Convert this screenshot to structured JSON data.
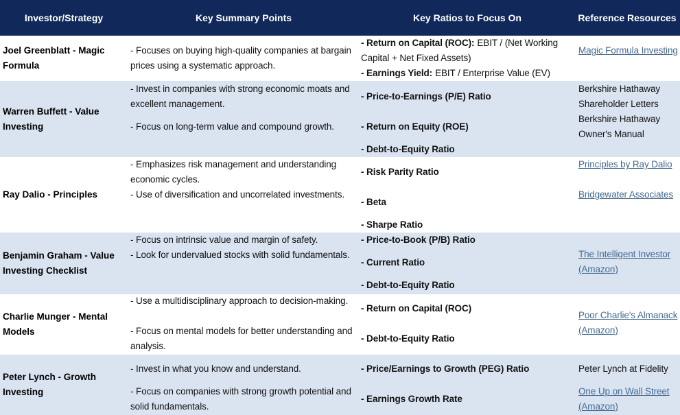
{
  "table": {
    "headers": [
      "Investor/Strategy",
      "Key Summary Points",
      "Key Ratios to Focus On",
      "Reference Resources"
    ],
    "rows": [
      {
        "investor": "Joel Greenblatt - Magic Formula",
        "points": [
          "- Focuses on buying high-quality companies at bargain prices using a systematic approach."
        ],
        "ratios": [
          {
            "name": "- Return on Capital (ROC):",
            "detail": "EBIT / (Net Working Capital + Net Fixed Assets)"
          },
          {
            "name": "- Earnings Yield:",
            "detail": "EBIT / Enterprise Value (EV)"
          }
        ],
        "resources": [
          {
            "text": "Magic Formula Investing",
            "link": true
          }
        ]
      },
      {
        "investor": "Warren Buffett - Value Investing",
        "points": [
          "- Invest in companies with strong economic moats and excellent management.",
          "- Focus on long-term value and compound growth."
        ],
        "ratios": [
          {
            "name": "- Price-to-Earnings (P/E) Ratio"
          },
          {
            "name": "- Return on Equity (ROE)"
          },
          {
            "name": "- Debt-to-Equity Ratio"
          }
        ],
        "resources": [
          {
            "text": "Berkshire Hathaway Shareholder Letters",
            "link": false
          },
          {
            "text": "Berkshire Hathaway Owner's Manual",
            "link": false
          }
        ]
      },
      {
        "investor": "Ray Dalio - Principles",
        "points": [
          "- Emphasizes risk management and understanding economic cycles.",
          "- Use of diversification and uncorrelated investments."
        ],
        "ratios": [
          {
            "name": "- Risk Parity Ratio"
          },
          {
            "name": "- Beta"
          },
          {
            "name": "- Sharpe Ratio"
          }
        ],
        "resources": [
          {
            "text": "Principles by Ray Dalio",
            "link": true
          },
          {
            "text": "Bridgewater Associates",
            "link": true
          }
        ]
      },
      {
        "investor": "Benjamin Graham - Value Investing Checklist",
        "points": [
          "- Focus on intrinsic value and margin of safety.",
          "- Look for undervalued stocks with solid fundamentals."
        ],
        "ratios": [
          {
            "name": "- Price-to-Book (P/B) Ratio"
          },
          {
            "name": "- Current Ratio"
          },
          {
            "name": "- Debt-to-Equity Ratio"
          }
        ],
        "resources": [
          {
            "text": "The Intelligent Investor (Amazon)",
            "link": true
          }
        ]
      },
      {
        "investor": "Charlie Munger - Mental Models",
        "points": [
          "- Use a multidisciplinary approach to decision-making.",
          "- Focus on mental models for better understanding and analysis."
        ],
        "ratios": [
          {
            "name": "- Return on Capital (ROC)"
          },
          {
            "name": "- Debt-to-Equity Ratio"
          }
        ],
        "resources": [
          {
            "text": "Poor Charlie's Almanack (Amazon)",
            "link": true
          }
        ]
      },
      {
        "investor": "Peter Lynch - Growth Investing",
        "points": [
          "- Invest in what you know and understand.",
          "- Focus on companies with strong growth potential and solid fundamentals."
        ],
        "ratios": [
          {
            "name": "- Price/Earnings to Growth (PEG) Ratio"
          },
          {
            "name": "- Earnings Growth Rate"
          }
        ],
        "resources": [
          {
            "text": "Peter Lynch at Fidelity",
            "link": false
          },
          {
            "text": "One Up on Wall Street (Amazon)",
            "link": true
          }
        ]
      }
    ]
  }
}
